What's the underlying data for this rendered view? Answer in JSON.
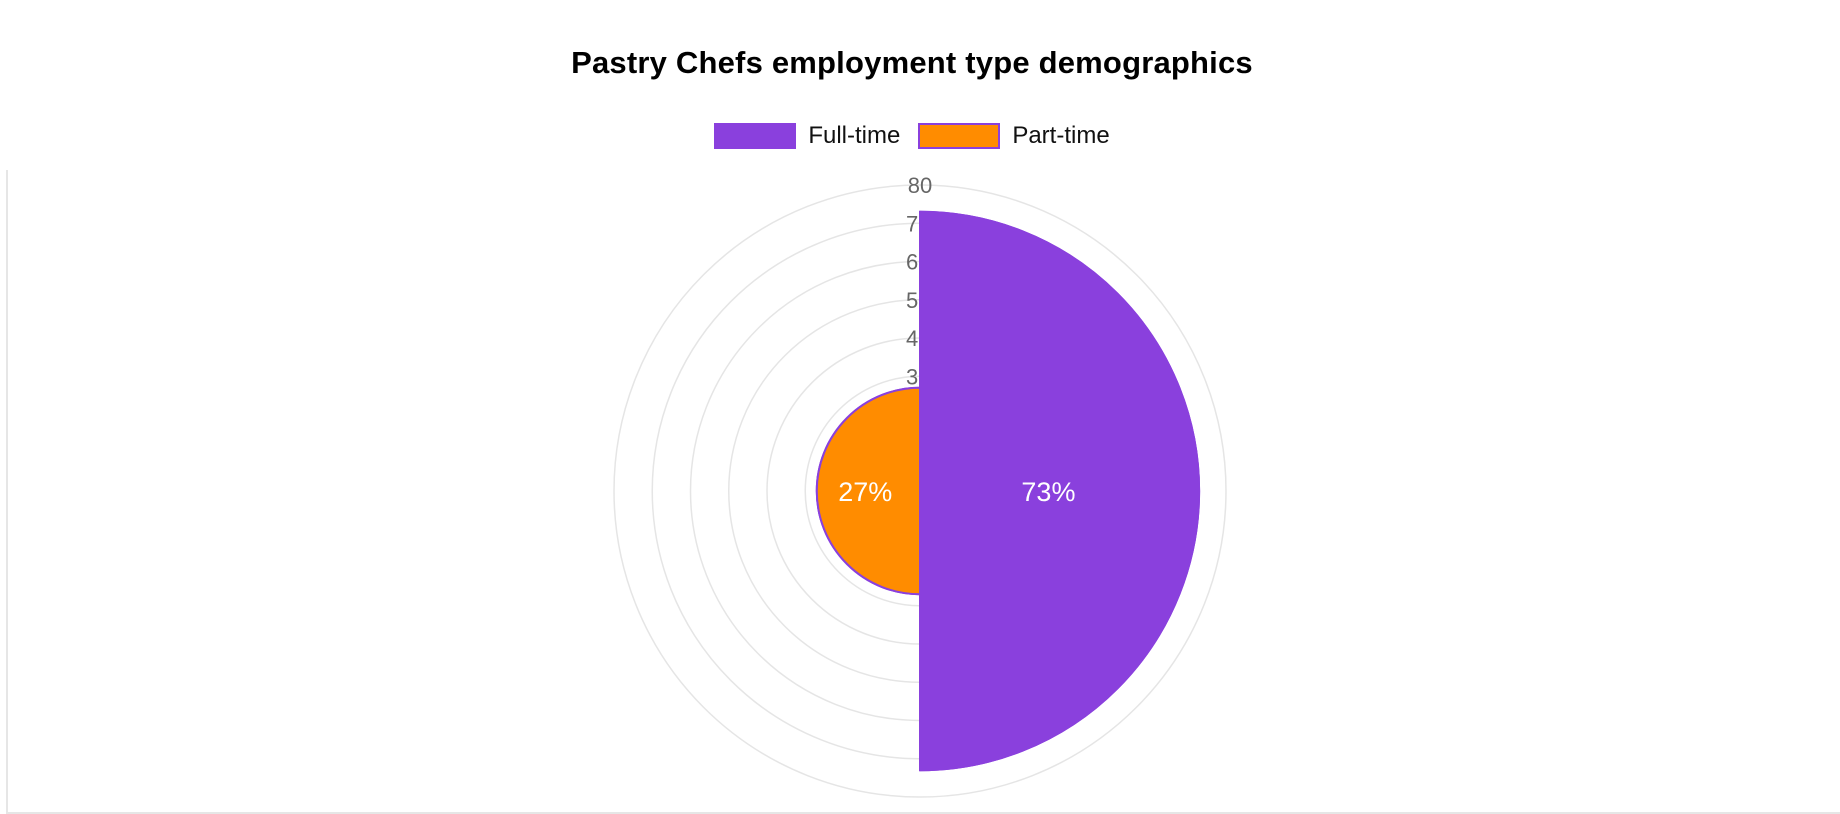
{
  "chart_data": {
    "type": "polarArea",
    "title": "Pastry Chefs employment type demographics",
    "categories": [
      "Full-time",
      "Part-time"
    ],
    "values": [
      73,
      27
    ],
    "data_labels": [
      "73%",
      "27%"
    ],
    "radial_axis": {
      "min": 0,
      "max": 80,
      "tick_step": 10,
      "visible_tick_labels": [
        "80",
        "7",
        "6",
        "5",
        "4",
        "3"
      ]
    },
    "grid": true,
    "legend_position": "top",
    "colors": {
      "Full-time": "#8a40dd",
      "Part-time": "#ff8c00",
      "segment_border": "#8a40dd",
      "grid": "#e5e5e5",
      "tick_label": "#666666"
    }
  }
}
